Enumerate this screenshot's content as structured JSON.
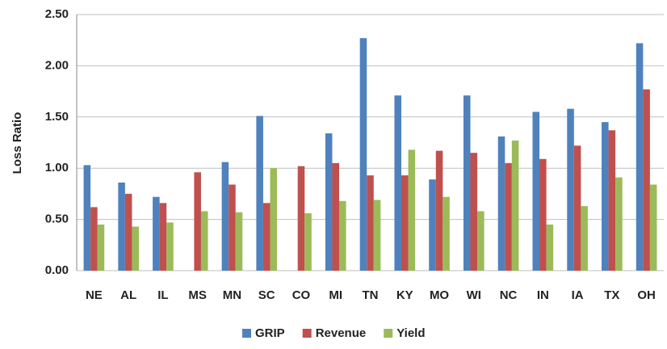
{
  "chart_data": {
    "type": "bar",
    "y_label": "Loss Ratio",
    "categories": [
      "NE",
      "AL",
      "IL",
      "MS",
      "MN",
      "SC",
      "CO",
      "MI",
      "TN",
      "KY",
      "MO",
      "WI",
      "NC",
      "IN",
      "IA",
      "TX",
      "OH"
    ],
    "series": [
      {
        "name": "GRIP",
        "color": "#4f81bd",
        "values": [
          1.03,
          0.86,
          0.72,
          null,
          1.06,
          1.51,
          null,
          1.34,
          2.27,
          1.71,
          0.89,
          1.71,
          1.31,
          1.55,
          1.58,
          1.45,
          2.22
        ]
      },
      {
        "name": "Revenue",
        "color": "#c0504d",
        "values": [
          0.62,
          0.75,
          0.66,
          0.96,
          0.84,
          0.66,
          1.02,
          1.05,
          0.93,
          0.93,
          1.17,
          1.15,
          1.05,
          1.09,
          1.22,
          1.37,
          1.77
        ]
      },
      {
        "name": "Yield",
        "color": "#9bbb59",
        "values": [
          0.45,
          0.43,
          0.47,
          0.58,
          0.57,
          1.0,
          0.56,
          0.68,
          0.69,
          1.18,
          0.72,
          0.58,
          1.27,
          0.45,
          0.63,
          0.91,
          0.84
        ]
      }
    ],
    "ylim": [
      0,
      2.5
    ],
    "yticks": [
      {
        "value": 0,
        "label": "0.00"
      },
      {
        "value": 0.5,
        "label": "0.50"
      },
      {
        "value": 1,
        "label": "1.00"
      },
      {
        "value": 1.5,
        "label": "1.50"
      },
      {
        "value": 2,
        "label": "2.00"
      },
      {
        "value": 2.5,
        "label": "2.50"
      }
    ],
    "grid": true,
    "legend": "bottom"
  }
}
